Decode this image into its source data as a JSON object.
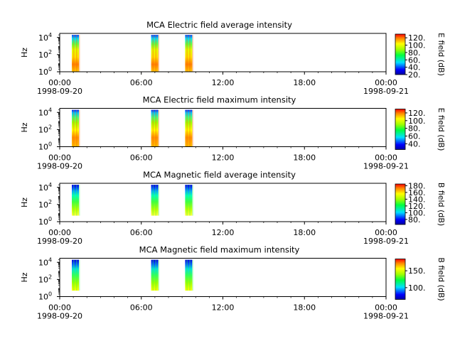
{
  "chart_data": [
    {
      "type": "heatmap",
      "title": "MCA  Electric field average intensity",
      "ylabel": "Hz",
      "yscale": "log",
      "ylim": [
        1,
        30000
      ],
      "y_ticks": [
        {
          "label": "10",
          "exp": "0"
        },
        {
          "label": "10",
          "exp": "2"
        },
        {
          "label": "10",
          "exp": "4"
        }
      ],
      "x_tick_labels": [
        "00:00",
        "06:00",
        "12:00",
        "18:00",
        "00:00"
      ],
      "x_start": "1998-09-20 00:00",
      "x_end": "1998-09-21 00:00",
      "x_start_date": "1998-09-20",
      "x_end_date": "1998-09-21",
      "data_intervals": [
        {
          "start": "1998-09-20 00:00",
          "end": "1998-09-20 00:20",
          "fmin": 1,
          "fmax": 20000
        },
        {
          "start": "1998-09-20 05:50",
          "end": "1998-09-20 06:20",
          "fmin": 1,
          "fmax": 20000
        },
        {
          "start": "1998-09-20 08:20",
          "end": "1998-09-20 08:50",
          "fmin": 1,
          "fmax": 20000
        }
      ],
      "colorbar": {
        "label": "E field (dB)",
        "min": 20,
        "max": 130,
        "tick_labels": [
          "20.",
          "40.",
          "60.",
          "80.",
          "100.",
          "120."
        ]
      }
    },
    {
      "type": "heatmap",
      "title": "MCA  Electric field maximum intensity",
      "ylabel": "Hz",
      "yscale": "log",
      "ylim": [
        1,
        30000
      ],
      "y_ticks": [
        {
          "label": "10",
          "exp": "0"
        },
        {
          "label": "10",
          "exp": "2"
        },
        {
          "label": "10",
          "exp": "4"
        }
      ],
      "x_tick_labels": [
        "00:00",
        "06:00",
        "12:00",
        "18:00",
        "00:00"
      ],
      "x_start": "1998-09-20 00:00",
      "x_end": "1998-09-21 00:00",
      "x_start_date": "1998-09-20",
      "x_end_date": "1998-09-21",
      "data_intervals": [
        {
          "start": "1998-09-20 00:00",
          "end": "1998-09-20 00:20",
          "fmin": 1,
          "fmax": 20000
        },
        {
          "start": "1998-09-20 05:50",
          "end": "1998-09-20 06:20",
          "fmin": 1,
          "fmax": 20000
        },
        {
          "start": "1998-09-20 08:20",
          "end": "1998-09-20 08:50",
          "fmin": 1,
          "fmax": 20000
        }
      ],
      "colorbar": {
        "label": "E field (dB)",
        "min": 25,
        "max": 130,
        "tick_labels": [
          "40.",
          "60.",
          "80.",
          "100.",
          "120."
        ]
      }
    },
    {
      "type": "heatmap",
      "title": "MCA  Magnetic field average intensity",
      "ylabel": "Hz",
      "yscale": "log",
      "ylim": [
        1,
        30000
      ],
      "y_ticks": [
        {
          "label": "10",
          "exp": "0"
        },
        {
          "label": "10",
          "exp": "2"
        },
        {
          "label": "10",
          "exp": "4"
        }
      ],
      "x_tick_labels": [
        "00:00",
        "06:00",
        "12:00",
        "18:00",
        "00:00"
      ],
      "x_start": "1998-09-20 00:00",
      "x_end": "1998-09-21 00:00",
      "x_start_date": "1998-09-20",
      "x_end_date": "1998-09-21",
      "data_intervals": [
        {
          "start": "1998-09-20 00:00",
          "end": "1998-09-20 00:20",
          "fmin": 5,
          "fmax": 20000
        },
        {
          "start": "1998-09-20 05:50",
          "end": "1998-09-20 06:20",
          "fmin": 5,
          "fmax": 20000
        },
        {
          "start": "1998-09-20 08:20",
          "end": "1998-09-20 08:50",
          "fmin": 5,
          "fmax": 20000
        }
      ],
      "colorbar": {
        "label": "B field (dB)",
        "min": 65,
        "max": 185,
        "tick_labels": [
          "80.",
          "100.",
          "120.",
          "140.",
          "160.",
          "180."
        ]
      }
    },
    {
      "type": "heatmap",
      "title": "MCA  Magnetic field maximum intensity",
      "ylabel": "Hz",
      "yscale": "log",
      "ylim": [
        1,
        30000
      ],
      "y_ticks": [
        {
          "label": "10",
          "exp": "0"
        },
        {
          "label": "10",
          "exp": "2"
        },
        {
          "label": "10",
          "exp": "4"
        }
      ],
      "x_tick_labels": [
        "00:00",
        "06:00",
        "12:00",
        "18:00",
        "00:00"
      ],
      "x_start": "1998-09-20 00:00",
      "x_end": "1998-09-21 00:00",
      "x_start_date": "1998-09-20",
      "x_end_date": "1998-09-21",
      "data_intervals": [
        {
          "start": "1998-09-20 00:00",
          "end": "1998-09-20 00:20",
          "fmin": 5,
          "fmax": 20000
        },
        {
          "start": "1998-09-20 05:50",
          "end": "1998-09-20 06:20",
          "fmin": 5,
          "fmax": 20000
        },
        {
          "start": "1998-09-20 08:20",
          "end": "1998-09-20 08:50",
          "fmin": 5,
          "fmax": 20000
        }
      ],
      "colorbar": {
        "label": "B field (dB)",
        "min": 65,
        "max": 185,
        "tick_labels": [
          "100.",
          "150."
        ]
      }
    }
  ]
}
